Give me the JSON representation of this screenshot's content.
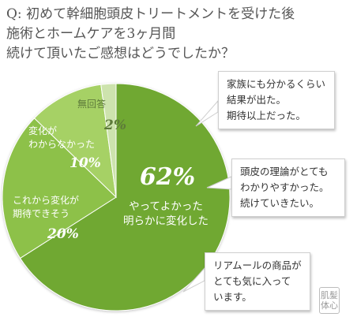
{
  "question": {
    "lines": [
      "Q: 初めて幹細胞頭皮トリートメントを受けた後",
      "施術とホームケアを3ヶ月間",
      "続けて頂いたご感想はどうでしたか？"
    ]
  },
  "chart_data": {
    "type": "pie",
    "slices": [
      {
        "lines": [
          "やってよかった",
          "明らかに変化した"
        ],
        "value": 62,
        "value_label": "62%",
        "color": "#6fa832"
      },
      {
        "lines": [
          "これから変化が",
          "期待できそう"
        ],
        "value": 20,
        "value_label": "20%",
        "color": "#8dc14a"
      },
      {
        "lines": [
          "変化が",
          "わからなかった"
        ],
        "value": 10,
        "value_label": "10%",
        "color": "#a6d165"
      },
      {
        "lines": [
          "無回答"
        ],
        "value": 2,
        "value_label": "2%",
        "color": "#cde3ad"
      }
    ]
  },
  "comments": [
    [
      "家族にも分かるくらい",
      "結果が出た。",
      "期待以上だった。"
    ],
    [
      "頭皮の理論がとても",
      "わかりやすかった。",
      "続けていきたい。"
    ],
    [
      "リアムールの商品が",
      "とても気に入って",
      "います。"
    ]
  ],
  "logo": {
    "top": "肌髪",
    "bottom": "体心"
  }
}
